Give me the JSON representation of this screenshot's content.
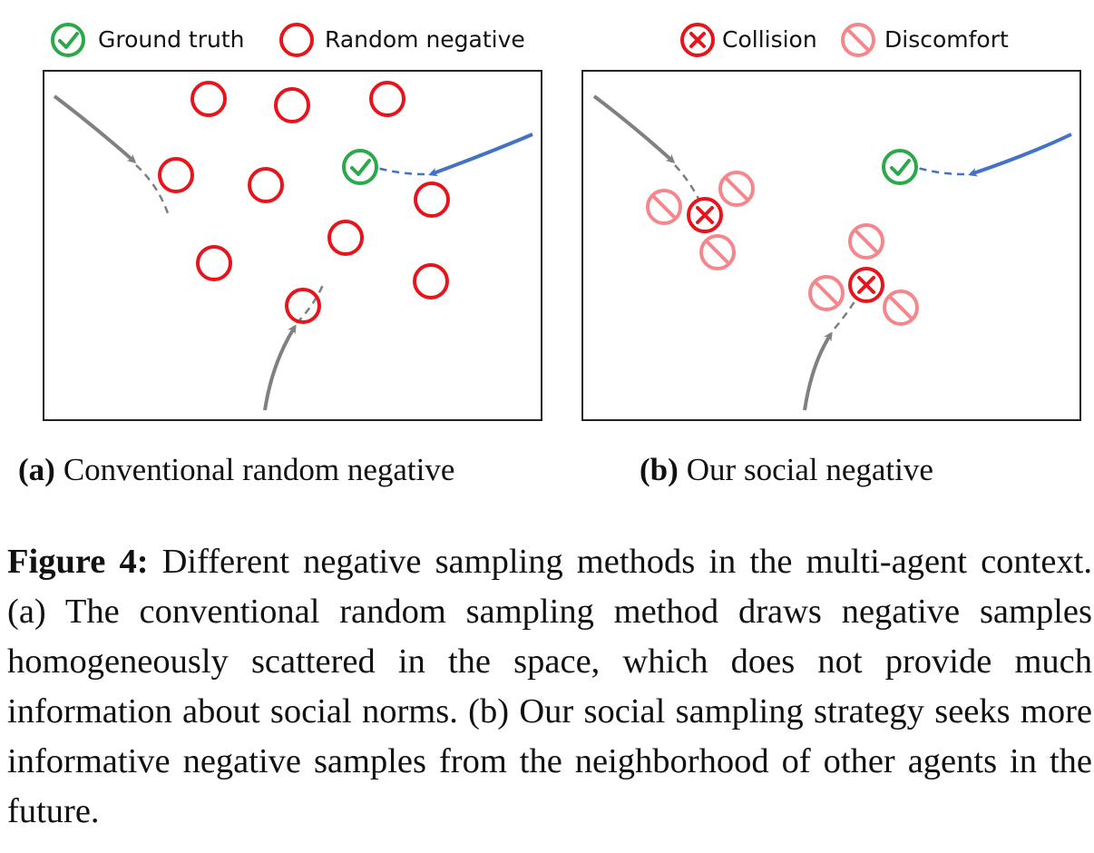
{
  "legend": {
    "ground_truth": "Ground truth",
    "random_negative": "Random negative",
    "collision": "Collision",
    "discomfort": "Discomfort"
  },
  "panel_a": {
    "label": "(a)",
    "title": "Conventional random negative"
  },
  "panel_b": {
    "label": "(b)",
    "title": "Our social negative"
  },
  "caption": {
    "label": "Figure 4:",
    "text": "Different negative sampling methods in the multi-agent context.  (a) The conventional random sampling method draws negative samples homogeneously scattered in the space, which does not provide much information about social norms.  (b) Our social sampling strategy seeks more informative negative samples from the neighborhood of other agents in the future."
  },
  "colors": {
    "ground_truth": "#2aa84a",
    "random_negative": "#e8141c",
    "collision": "#e8141c",
    "discomfort": "#f4868c",
    "ego_trajectory": "#4472c4",
    "other_trajectory": "#808080",
    "frame": "#222222"
  },
  "icons": {
    "ground_truth": "check-circle-icon",
    "random_negative": "circle-icon",
    "collision": "x-circle-icon",
    "discomfort": "prohibited-icon"
  }
}
